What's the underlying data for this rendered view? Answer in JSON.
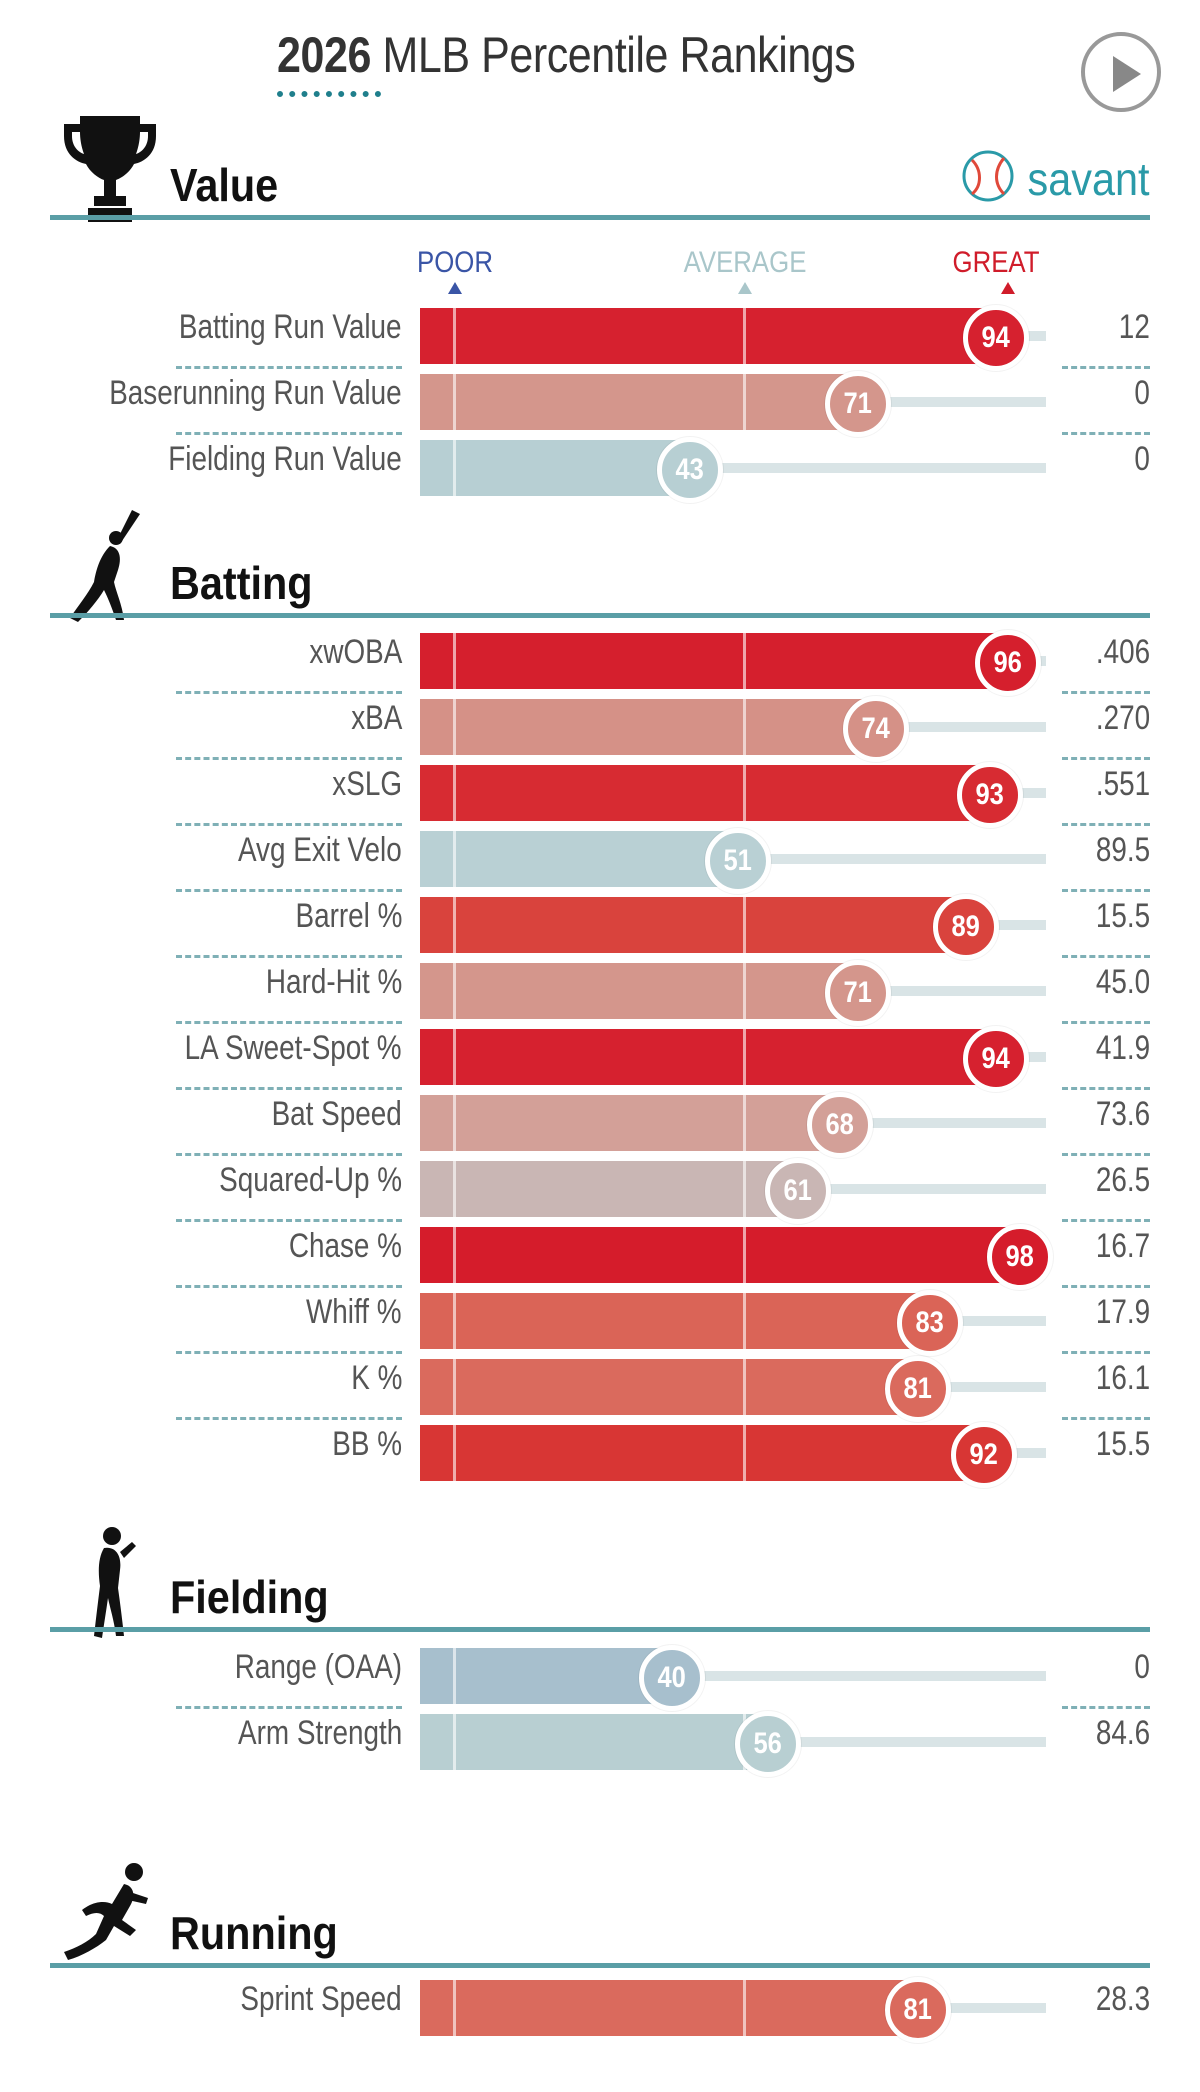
{
  "title": {
    "year": "2026",
    "text": "MLB Percentile Rankings"
  },
  "brand": {
    "name": "savant"
  },
  "scale": {
    "poor": "POOR",
    "average": "AVERAGE",
    "great": "GREAT"
  },
  "colors": {
    "poor": "#3a55a6",
    "average": "#a9c6ca",
    "great": "#d01c2a",
    "section_line": "#5a9ea6",
    "brand": "#2a9aa8"
  },
  "sections": [
    {
      "id": "value",
      "title": "Value",
      "icon": "trophy-icon"
    },
    {
      "id": "batting",
      "title": "Batting",
      "icon": "batter-icon"
    },
    {
      "id": "fielding",
      "title": "Fielding",
      "icon": "fielder-icon"
    },
    {
      "id": "running",
      "title": "Running",
      "icon": "runner-icon"
    }
  ],
  "chart_data": {
    "type": "bar",
    "xlim": [
      0,
      100
    ],
    "groups": [
      {
        "section": "Value",
        "metrics": [
          {
            "label": "Batting Run Value",
            "percentile": 94,
            "value": "12",
            "color": "#d6212f"
          },
          {
            "label": "Baserunning Run Value",
            "percentile": 71,
            "value": "0",
            "color": "#d4968c"
          },
          {
            "label": "Fielding Run Value",
            "percentile": 43,
            "value": "0",
            "color": "#b7cfd3"
          }
        ]
      },
      {
        "section": "Batting",
        "metrics": [
          {
            "label": "xwOBA",
            "percentile": 96,
            "value": ".406",
            "color": "#d51f2d"
          },
          {
            "label": "xBA",
            "percentile": 74,
            "value": ".270",
            "color": "#d59187"
          },
          {
            "label": "xSLG",
            "percentile": 93,
            "value": ".551",
            "color": "#d72b32"
          },
          {
            "label": "Avg Exit Velo",
            "percentile": 51,
            "value": "89.5",
            "color": "#b9d0d4"
          },
          {
            "label": "Barrel %",
            "percentile": 89,
            "value": "15.5",
            "color": "#d9433d"
          },
          {
            "label": "Hard-Hit %",
            "percentile": 71,
            "value": "45.0",
            "color": "#d4968c"
          },
          {
            "label": "LA Sweet-Spot %",
            "percentile": 94,
            "value": "41.9",
            "color": "#d6212f"
          },
          {
            "label": "Bat Speed",
            "percentile": 68,
            "value": "73.6",
            "color": "#d3a098"
          },
          {
            "label": "Squared-Up %",
            "percentile": 61,
            "value": "26.5",
            "color": "#c9b6b4"
          },
          {
            "label": "Chase %",
            "percentile": 98,
            "value": "16.7",
            "color": "#d51c2b"
          },
          {
            "label": "Whiff %",
            "percentile": 83,
            "value": "17.9",
            "color": "#da6457"
          },
          {
            "label": "K %",
            "percentile": 81,
            "value": "16.1",
            "color": "#da6a5d"
          },
          {
            "label": "BB %",
            "percentile": 92,
            "value": "15.5",
            "color": "#d83634"
          }
        ]
      },
      {
        "section": "Fielding",
        "metrics": [
          {
            "label": "Range (OAA)",
            "percentile": 40,
            "value": "0",
            "color": "#a7bfcd"
          },
          {
            "label": "Arm Strength",
            "percentile": 56,
            "value": "84.6",
            "color": "#b8cfd2"
          }
        ]
      },
      {
        "section": "Running",
        "metrics": [
          {
            "label": "Sprint Speed",
            "percentile": 81,
            "value": "28.3",
            "color": "#da6a5d"
          }
        ]
      }
    ]
  }
}
